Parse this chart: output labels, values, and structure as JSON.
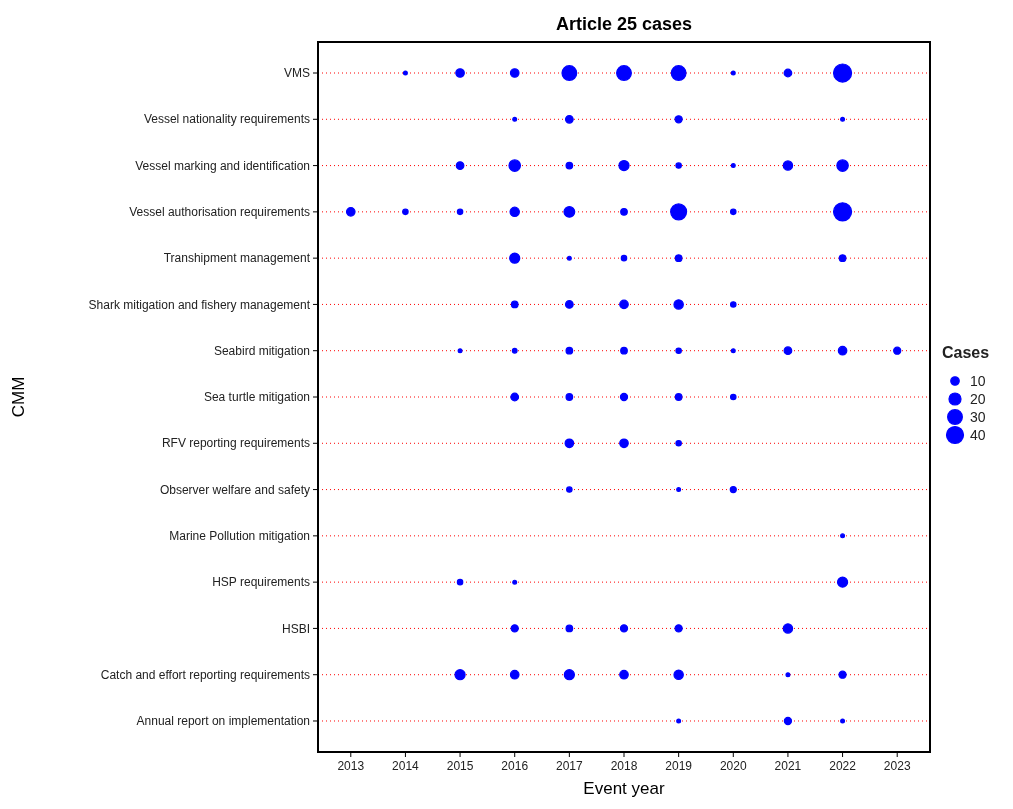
{
  "chart_data": {
    "type": "bubble",
    "title": "Article 25 cases",
    "xlabel": "Event year",
    "ylabel": "CMM",
    "orientation": "horizontal",
    "legend_title": "Cases",
    "grid": "y",
    "marker": "circle",
    "categories": [
      "VMS",
      "Vessel nationality requirements",
      "Vessel marking and identification",
      "Vessel authorisation requirements",
      "Transhipment management",
      "Shark mitigation and fishery management",
      "Seabird mitigation",
      "Sea turtle mitigation",
      "RFV reporting requirements",
      "Observer welfare and safety",
      "Marine Pollution mitigation",
      "HSP requirements",
      "HSBI",
      "Catch and effort reporting requirements",
      "Annual report on implementation"
    ],
    "xlim": [
      2012.4,
      2023.6
    ],
    "xticks": [
      2013,
      2014,
      2015,
      2016,
      2017,
      2018,
      2019,
      2020,
      2021,
      2022,
      2023
    ],
    "size_legend": [
      10,
      20,
      30,
      40
    ],
    "series": [
      {
        "color": "#0000ff",
        "x": [
          "VMS",
          "VMS",
          "VMS",
          "VMS",
          "VMS",
          "VMS",
          "VMS",
          "VMS",
          "VMS",
          "Vessel nationality requirements",
          "Vessel nationality requirements",
          "Vessel nationality requirements",
          "Vessel nationality requirements",
          "Vessel marking and identification",
          "Vessel marking and identification",
          "Vessel marking and identification",
          "Vessel marking and identification",
          "Vessel marking and identification",
          "Vessel marking and identification",
          "Vessel marking and identification",
          "Vessel marking and identification",
          "Vessel authorisation requirements",
          "Vessel authorisation requirements",
          "Vessel authorisation requirements",
          "Vessel authorisation requirements",
          "Vessel authorisation requirements",
          "Vessel authorisation requirements",
          "Vessel authorisation requirements",
          "Vessel authorisation requirements",
          "Vessel authorisation requirements",
          "Transhipment management",
          "Transhipment management",
          "Transhipment management",
          "Transhipment management",
          "Transhipment management",
          "Shark mitigation and fishery management",
          "Shark mitigation and fishery management",
          "Shark mitigation and fishery management",
          "Shark mitigation and fishery management",
          "Shark mitigation and fishery management",
          "Seabird mitigation",
          "Seabird mitigation",
          "Seabird mitigation",
          "Seabird mitigation",
          "Seabird mitigation",
          "Seabird mitigation",
          "Seabird mitigation",
          "Seabird mitigation",
          "Seabird mitigation",
          "Sea turtle mitigation",
          "Sea turtle mitigation",
          "Sea turtle mitigation",
          "Sea turtle mitigation",
          "Sea turtle mitigation",
          "RFV reporting requirements",
          "RFV reporting requirements",
          "RFV reporting requirements",
          "Observer welfare and safety",
          "Observer welfare and safety",
          "Observer welfare and safety",
          "Marine Pollution mitigation",
          "HSP requirements",
          "HSP requirements",
          "HSP requirements",
          "HSBI",
          "HSBI",
          "HSBI",
          "HSBI",
          "HSBI",
          "Catch and effort reporting requirements",
          "Catch and effort reporting requirements",
          "Catch and effort reporting requirements",
          "Catch and effort reporting requirements",
          "Catch and effort reporting requirements",
          "Catch and effort reporting requirements",
          "Catch and effort reporting requirements",
          "Annual report on implementation",
          "Annual report on implementation",
          "Annual report on implementation"
        ],
        "values": [
          2014,
          2015,
          2016,
          2017,
          2018,
          2019,
          2020,
          2021,
          2022,
          2016,
          2017,
          2019,
          2022,
          2015,
          2016,
          2017,
          2018,
          2019,
          2020,
          2021,
          2022,
          2013,
          2014,
          2015,
          2016,
          2017,
          2018,
          2019,
          2020,
          2022,
          2016,
          2017,
          2018,
          2019,
          2022,
          2016,
          2017,
          2018,
          2019,
          2020,
          2015,
          2016,
          2017,
          2018,
          2019,
          2020,
          2021,
          2022,
          2023,
          2016,
          2017,
          2018,
          2019,
          2020,
          2017,
          2018,
          2019,
          2017,
          2019,
          2020,
          2022,
          2015,
          2016,
          2022,
          2016,
          2017,
          2018,
          2019,
          2021,
          2015,
          2016,
          2017,
          2018,
          2019,
          2021,
          2022,
          2019,
          2021,
          2022
        ],
        "sizes": [
          2,
          10,
          10,
          30,
          30,
          30,
          2,
          8,
          45,
          2,
          8,
          7,
          2,
          8,
          18,
          6,
          14,
          4,
          2,
          12,
          18,
          10,
          4,
          4,
          12,
          16,
          6,
          35,
          4,
          45,
          14,
          2,
          4,
          6,
          6,
          6,
          8,
          10,
          12,
          4,
          2,
          3,
          6,
          6,
          4,
          2,
          8,
          10,
          7,
          8,
          6,
          7,
          6,
          4,
          10,
          10,
          4,
          4,
          2,
          5,
          2,
          4,
          2,
          14,
          7,
          6,
          7,
          7,
          12,
          14,
          10,
          14,
          10,
          12,
          2,
          7,
          2,
          7,
          2
        ]
      }
    ]
  }
}
